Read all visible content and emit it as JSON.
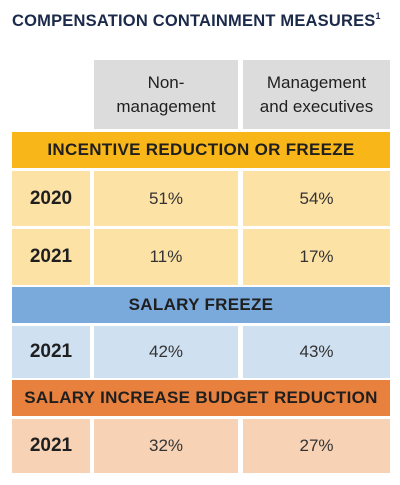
{
  "title": "COMPENSATION CONTAINMENT MEASURES",
  "title_footnote": "1",
  "columns": [
    "Non-\nmanagement",
    "Management\nand executives"
  ],
  "colors": {
    "incentive_band": "#f9b619",
    "incentive_cells": "#fde2a6",
    "salary_freeze_band": "#7aa9db",
    "salary_freeze_cells": "#cfe0f1",
    "budget_band": "#e8803e",
    "budget_cells": "#f7d2b5",
    "header_cells": "#dcdcdc",
    "title_color": "#1b2a4a"
  },
  "sections": [
    {
      "label": "INCENTIVE REDUCTION OR FREEZE",
      "rows": [
        {
          "year": "2020",
          "non_management": "51%",
          "management": "54%"
        },
        {
          "year": "2021",
          "non_management": "11%",
          "management": "17%"
        }
      ]
    },
    {
      "label": "SALARY FREEZE",
      "rows": [
        {
          "year": "2021",
          "non_management": "42%",
          "management": "43%"
        }
      ]
    },
    {
      "label": "SALARY INCREASE BUDGET REDUCTION",
      "rows": [
        {
          "year": "2021",
          "non_management": "32%",
          "management": "27%"
        }
      ]
    }
  ]
}
